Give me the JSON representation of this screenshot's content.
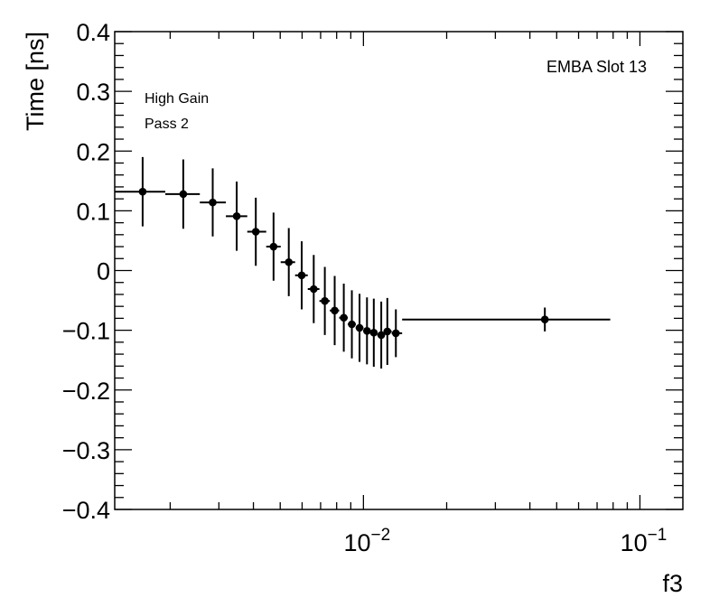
{
  "chart_data": {
    "type": "scatter",
    "title": "",
    "xlabel": "f3",
    "ylabel": "Time [ns]",
    "xscale": "log",
    "xlim": [
      0.00126,
      0.143
    ],
    "ylim": [
      -0.4,
      0.4
    ],
    "grid": false,
    "marker_color": "#000000",
    "y_ticks": [
      {
        "value": -0.4,
        "label": "−0.4"
      },
      {
        "value": -0.3,
        "label": "−0.3"
      },
      {
        "value": -0.2,
        "label": "−0.2"
      },
      {
        "value": -0.1,
        "label": "−0.1"
      },
      {
        "value": 0,
        "label": "0"
      },
      {
        "value": 0.1,
        "label": "0.1"
      },
      {
        "value": 0.2,
        "label": "0.2"
      },
      {
        "value": 0.3,
        "label": "0.3"
      },
      {
        "value": 0.4,
        "label": "0.4"
      }
    ],
    "x_ticks": [
      {
        "value": 0.01,
        "base": "10",
        "exp": "−2"
      },
      {
        "value": 0.1,
        "base": "10",
        "exp": "−1"
      }
    ],
    "annotations": {
      "slot": "EMBA Slot 13",
      "gain": "High Gain",
      "pass": "Pass 2"
    },
    "bin_edges": [
      0.00126,
      0.00192,
      0.00256,
      0.00318,
      0.0038,
      0.00445,
      0.00502,
      0.00566,
      0.00629,
      0.00693,
      0.00756,
      0.00817,
      0.00878,
      0.00938,
      0.01,
      0.01057,
      0.01122,
      0.01192,
      0.01265,
      0.0138,
      0.0781
    ],
    "points": [
      {
        "x": 0.00159,
        "y": 0.132,
        "yerr": 0.058
      },
      {
        "x": 0.00223,
        "y": 0.128,
        "yerr": 0.058
      },
      {
        "x": 0.00285,
        "y": 0.114,
        "yerr": 0.057
      },
      {
        "x": 0.00348,
        "y": 0.091,
        "yerr": 0.058
      },
      {
        "x": 0.00408,
        "y": 0.065,
        "yerr": 0.057
      },
      {
        "x": 0.00473,
        "y": 0.04,
        "yerr": 0.057
      },
      {
        "x": 0.00537,
        "y": 0.014,
        "yerr": 0.057
      },
      {
        "x": 0.00598,
        "y": -0.008,
        "yerr": 0.057
      },
      {
        "x": 0.00661,
        "y": -0.031,
        "yerr": 0.057
      },
      {
        "x": 0.00725,
        "y": -0.051,
        "yerr": 0.057
      },
      {
        "x": 0.00787,
        "y": -0.067,
        "yerr": 0.058
      },
      {
        "x": 0.00849,
        "y": -0.079,
        "yerr": 0.057
      },
      {
        "x": 0.00908,
        "y": -0.09,
        "yerr": 0.057
      },
      {
        "x": 0.00968,
        "y": -0.096,
        "yerr": 0.057
      },
      {
        "x": 0.0103,
        "y": -0.101,
        "yerr": 0.056
      },
      {
        "x": 0.0109,
        "y": -0.104,
        "yerr": 0.057
      },
      {
        "x": 0.0116,
        "y": -0.108,
        "yerr": 0.056
      },
      {
        "x": 0.0122,
        "y": -0.102,
        "yerr": 0.056
      },
      {
        "x": 0.0131,
        "y": -0.105,
        "yerr": 0.04
      },
      {
        "x": 0.0453,
        "y": -0.082,
        "yerr": 0.02
      }
    ]
  }
}
